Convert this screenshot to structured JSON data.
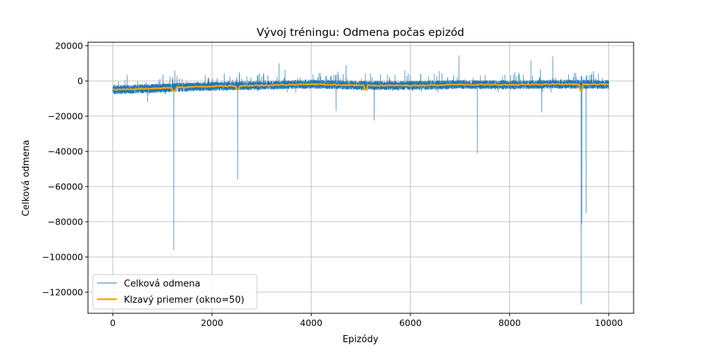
{
  "chart_data": {
    "type": "line",
    "title": "Vývoj tréningu: Odmena počas epizód",
    "xlabel": "Epizódy",
    "ylabel": "Celková odmena",
    "xlim": [
      -500,
      10500
    ],
    "ylim": [
      -132000,
      22000
    ],
    "x_ticks": [
      0,
      2000,
      4000,
      6000,
      8000,
      10000
    ],
    "x_tick_labels": [
      "0",
      "2000",
      "4000",
      "6000",
      "8000",
      "10000"
    ],
    "y_ticks": [
      20000,
      0,
      -20000,
      -40000,
      -60000,
      -80000,
      -100000,
      -120000
    ],
    "y_tick_labels": [
      "20000",
      "0",
      "−20000",
      "−40000",
      "−60000",
      "−80000",
      "−100000",
      "−120000"
    ],
    "grid": true,
    "legend_position": "lower-left",
    "series": [
      {
        "name": "Celková odmena",
        "color": "#1f77b4",
        "episodes": 10000,
        "typical_range": [
          -7500,
          2500
        ],
        "spikes": [
          {
            "x": 700,
            "y": -12000
          },
          {
            "x": 1230,
            "y": -96000
          },
          {
            "x": 1250,
            "y": 6000
          },
          {
            "x": 2520,
            "y": -56000
          },
          {
            "x": 3350,
            "y": 10000
          },
          {
            "x": 4500,
            "y": -17000
          },
          {
            "x": 4700,
            "y": 9000
          },
          {
            "x": 5270,
            "y": -22500
          },
          {
            "x": 6980,
            "y": 14500
          },
          {
            "x": 7350,
            "y": -41000
          },
          {
            "x": 8430,
            "y": 11500
          },
          {
            "x": 8650,
            "y": -18000
          },
          {
            "x": 8870,
            "y": 14000
          },
          {
            "x": 9440,
            "y": -127000
          },
          {
            "x": 9460,
            "y": -81000
          },
          {
            "x": 9540,
            "y": -75000
          }
        ]
      },
      {
        "name": "Klzavý priemer (okno=50)",
        "color": "#ffa500",
        "trend": [
          {
            "x": 0,
            "y": -5000
          },
          {
            "x": 1000,
            "y": -4000
          },
          {
            "x": 2000,
            "y": -3000
          },
          {
            "x": 3000,
            "y": -2500
          },
          {
            "x": 4000,
            "y": -1800
          },
          {
            "x": 5000,
            "y": -2500
          },
          {
            "x": 6000,
            "y": -2600
          },
          {
            "x": 7000,
            "y": -2000
          },
          {
            "x": 8000,
            "y": -2200
          },
          {
            "x": 9000,
            "y": -1800
          },
          {
            "x": 10000,
            "y": -2000
          }
        ],
        "dips": [
          {
            "x": 1230,
            "y": -5500
          },
          {
            "x": 2520,
            "y": -4800
          },
          {
            "x": 5100,
            "y": -5000
          },
          {
            "x": 9440,
            "y": -5500
          }
        ]
      }
    ]
  }
}
